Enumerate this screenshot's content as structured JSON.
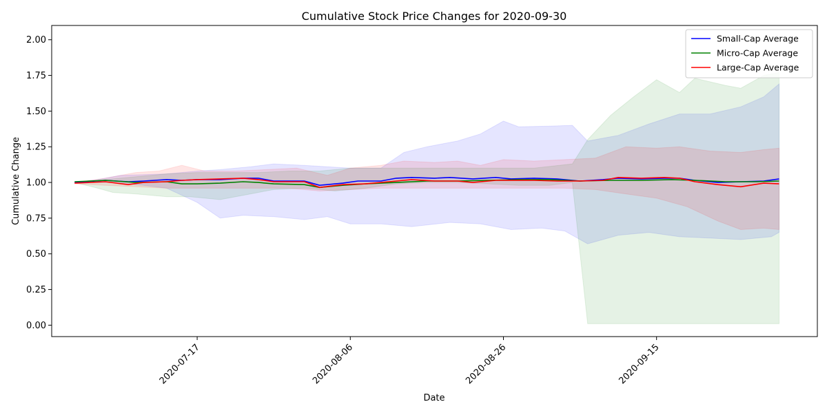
{
  "chart_data": {
    "type": "line",
    "title": "Cumulative Stock Price Changes for 2020-09-30",
    "xlabel": "Date",
    "ylabel": "Cumulative Change",
    "xlim": [
      "2020-06-28",
      "2020-10-06"
    ],
    "ylim": [
      -0.08,
      2.1
    ],
    "x_ticks": [
      "2020-07-17",
      "2020-08-06",
      "2020-08-26",
      "2020-09-15"
    ],
    "y_ticks": [
      "0.00",
      "0.25",
      "0.50",
      "0.75",
      "1.00",
      "1.25",
      "1.50",
      "1.75",
      "2.00"
    ],
    "grid": false,
    "legend_position": "upper right",
    "series": [
      {
        "name": "Small-Cap Average",
        "color": "#0000ff",
        "band_color": "#0000ff",
        "points": [
          [
            "2020-07-01",
            1.0
          ],
          [
            "2020-07-05",
            1.015
          ],
          [
            "2020-07-08",
            1.005
          ],
          [
            "2020-07-10",
            1.01
          ],
          [
            "2020-07-13",
            1.02
          ],
          [
            "2020-07-15",
            1.015
          ],
          [
            "2020-07-17",
            1.02
          ],
          [
            "2020-07-20",
            1.02
          ],
          [
            "2020-07-23",
            1.03
          ],
          [
            "2020-07-25",
            1.03
          ],
          [
            "2020-07-27",
            1.01
          ],
          [
            "2020-07-31",
            1.01
          ],
          [
            "2020-08-02",
            0.98
          ],
          [
            "2020-08-05",
            0.995
          ],
          [
            "2020-08-07",
            1.01
          ],
          [
            "2020-08-10",
            1.01
          ],
          [
            "2020-08-12",
            1.03
          ],
          [
            "2020-08-14",
            1.035
          ],
          [
            "2020-08-17",
            1.03
          ],
          [
            "2020-08-19",
            1.035
          ],
          [
            "2020-08-22",
            1.025
          ],
          [
            "2020-08-25",
            1.035
          ],
          [
            "2020-08-27",
            1.025
          ],
          [
            "2020-08-30",
            1.03
          ],
          [
            "2020-09-02",
            1.025
          ],
          [
            "2020-09-05",
            1.01
          ],
          [
            "2020-09-08",
            1.02
          ],
          [
            "2020-09-10",
            1.03
          ],
          [
            "2020-09-13",
            1.025
          ],
          [
            "2020-09-16",
            1.03
          ],
          [
            "2020-09-18",
            1.03
          ],
          [
            "2020-09-20",
            1.015
          ],
          [
            "2020-09-23",
            1.0
          ],
          [
            "2020-09-26",
            1.005
          ],
          [
            "2020-09-29",
            1.01
          ],
          [
            "2020-10-01",
            1.025
          ]
        ],
        "lower": [
          [
            "2020-07-01",
            1.0
          ],
          [
            "2020-07-06",
            1.0
          ],
          [
            "2020-07-10",
            0.98
          ],
          [
            "2020-07-13",
            0.96
          ],
          [
            "2020-07-17",
            0.86
          ],
          [
            "2020-07-20",
            0.75
          ],
          [
            "2020-07-23",
            0.77
          ],
          [
            "2020-07-27",
            0.76
          ],
          [
            "2020-07-31",
            0.74
          ],
          [
            "2020-08-03",
            0.76
          ],
          [
            "2020-08-06",
            0.71
          ],
          [
            "2020-08-10",
            0.71
          ],
          [
            "2020-08-14",
            0.69
          ],
          [
            "2020-08-19",
            0.72
          ],
          [
            "2020-08-23",
            0.71
          ],
          [
            "2020-08-27",
            0.67
          ],
          [
            "2020-08-31",
            0.68
          ],
          [
            "2020-09-03",
            0.66
          ],
          [
            "2020-09-06",
            0.57
          ],
          [
            "2020-09-10",
            0.63
          ],
          [
            "2020-09-14",
            0.65
          ],
          [
            "2020-09-18",
            0.62
          ],
          [
            "2020-09-22",
            0.61
          ],
          [
            "2020-09-26",
            0.6
          ],
          [
            "2020-09-30",
            0.62
          ],
          [
            "2020-10-01",
            0.65
          ]
        ],
        "upper": [
          [
            "2020-07-01",
            1.0
          ],
          [
            "2020-07-04",
            1.02
          ],
          [
            "2020-07-07",
            1.05
          ],
          [
            "2020-07-10",
            1.055
          ],
          [
            "2020-07-13",
            1.06
          ],
          [
            "2020-07-17",
            1.08
          ],
          [
            "2020-07-20",
            1.09
          ],
          [
            "2020-07-24",
            1.11
          ],
          [
            "2020-07-27",
            1.13
          ],
          [
            "2020-07-31",
            1.12
          ],
          [
            "2020-08-03",
            1.11
          ],
          [
            "2020-08-06",
            1.1
          ],
          [
            "2020-08-10",
            1.1
          ],
          [
            "2020-08-13",
            1.21
          ],
          [
            "2020-08-16",
            1.25
          ],
          [
            "2020-08-20",
            1.29
          ],
          [
            "2020-08-23",
            1.34
          ],
          [
            "2020-08-26",
            1.43
          ],
          [
            "2020-08-28",
            1.39
          ],
          [
            "2020-09-01",
            1.395
          ],
          [
            "2020-09-04",
            1.4
          ],
          [
            "2020-09-06",
            1.29
          ],
          [
            "2020-09-10",
            1.33
          ],
          [
            "2020-09-14",
            1.41
          ],
          [
            "2020-09-18",
            1.48
          ],
          [
            "2020-09-22",
            1.48
          ],
          [
            "2020-09-26",
            1.53
          ],
          [
            "2020-09-29",
            1.6
          ],
          [
            "2020-10-01",
            1.69
          ]
        ]
      },
      {
        "name": "Micro-Cap Average",
        "color": "#008000",
        "band_color": "#008000",
        "points": [
          [
            "2020-07-01",
            1.005
          ],
          [
            "2020-07-05",
            1.015
          ],
          [
            "2020-07-09",
            1.0
          ],
          [
            "2020-07-13",
            1.005
          ],
          [
            "2020-07-15",
            0.99
          ],
          [
            "2020-07-17",
            0.99
          ],
          [
            "2020-07-20",
            0.995
          ],
          [
            "2020-07-23",
            1.005
          ],
          [
            "2020-07-25",
            1.0
          ],
          [
            "2020-07-27",
            0.99
          ],
          [
            "2020-07-31",
            0.985
          ],
          [
            "2020-08-02",
            0.965
          ],
          [
            "2020-08-05",
            0.98
          ],
          [
            "2020-08-08",
            0.99
          ],
          [
            "2020-08-12",
            1.0
          ],
          [
            "2020-08-16",
            1.01
          ],
          [
            "2020-08-20",
            1.01
          ],
          [
            "2020-08-24",
            1.015
          ],
          [
            "2020-08-28",
            1.02
          ],
          [
            "2020-09-01",
            1.02
          ],
          [
            "2020-09-05",
            1.01
          ],
          [
            "2020-09-09",
            1.015
          ],
          [
            "2020-09-13",
            1.015
          ],
          [
            "2020-09-17",
            1.02
          ],
          [
            "2020-09-20",
            1.015
          ],
          [
            "2020-09-24",
            1.005
          ],
          [
            "2020-09-28",
            1.005
          ],
          [
            "2020-10-01",
            1.01
          ]
        ],
        "lower": [
          [
            "2020-07-01",
            1.0
          ],
          [
            "2020-07-04",
            0.96
          ],
          [
            "2020-07-06",
            0.93
          ],
          [
            "2020-07-09",
            0.92
          ],
          [
            "2020-07-13",
            0.9
          ],
          [
            "2020-07-16",
            0.9
          ],
          [
            "2020-07-20",
            0.88
          ],
          [
            "2020-07-23",
            0.91
          ],
          [
            "2020-07-27",
            0.95
          ],
          [
            "2020-07-31",
            0.96
          ],
          [
            "2020-08-04",
            0.94
          ],
          [
            "2020-08-08",
            0.96
          ],
          [
            "2020-08-12",
            0.99
          ],
          [
            "2020-08-16",
            1.0
          ],
          [
            "2020-08-20",
            1.0
          ],
          [
            "2020-08-24",
            0.99
          ],
          [
            "2020-08-28",
            0.98
          ],
          [
            "2020-09-01",
            0.98
          ],
          [
            "2020-09-04",
            1.0
          ],
          [
            "2020-09-06",
            0.01
          ],
          [
            "2020-09-30",
            0.01
          ],
          [
            "2020-10-01",
            0.01
          ]
        ],
        "upper": [
          [
            "2020-07-01",
            1.0
          ],
          [
            "2020-07-05",
            1.02
          ],
          [
            "2020-07-09",
            1.04
          ],
          [
            "2020-07-13",
            1.06
          ],
          [
            "2020-07-17",
            1.07
          ],
          [
            "2020-07-21",
            1.07
          ],
          [
            "2020-07-25",
            1.07
          ],
          [
            "2020-07-29",
            1.08
          ],
          [
            "2020-08-02",
            1.08
          ],
          [
            "2020-08-06",
            1.1
          ],
          [
            "2020-08-10",
            1.1
          ],
          [
            "2020-08-14",
            1.1
          ],
          [
            "2020-08-18",
            1.1
          ],
          [
            "2020-08-22",
            1.1
          ],
          [
            "2020-08-26",
            1.1
          ],
          [
            "2020-08-30",
            1.1
          ],
          [
            "2020-09-04",
            1.13
          ],
          [
            "2020-09-06",
            1.3
          ],
          [
            "2020-09-09",
            1.47
          ],
          [
            "2020-09-12",
            1.6
          ],
          [
            "2020-09-15",
            1.72
          ],
          [
            "2020-09-18",
            1.63
          ],
          [
            "2020-09-20",
            1.73
          ],
          [
            "2020-09-24",
            1.68
          ],
          [
            "2020-09-26",
            1.66
          ],
          [
            "2020-09-29",
            1.75
          ],
          [
            "2020-10-01",
            1.77
          ]
        ]
      },
      {
        "name": "Large-Cap Average",
        "color": "#ff0000",
        "band_color": "#ff0000",
        "points": [
          [
            "2020-07-01",
            0.995
          ],
          [
            "2020-07-05",
            1.005
          ],
          [
            "2020-07-08",
            0.985
          ],
          [
            "2020-07-10",
            1.0
          ],
          [
            "2020-07-13",
            1.005
          ],
          [
            "2020-07-15",
            1.015
          ],
          [
            "2020-07-17",
            1.02
          ],
          [
            "2020-07-20",
            1.025
          ],
          [
            "2020-07-23",
            1.03
          ],
          [
            "2020-07-25",
            1.02
          ],
          [
            "2020-07-27",
            1.005
          ],
          [
            "2020-07-31",
            1.005
          ],
          [
            "2020-08-02",
            0.965
          ],
          [
            "2020-08-05",
            0.985
          ],
          [
            "2020-08-08",
            0.99
          ],
          [
            "2020-08-12",
            1.01
          ],
          [
            "2020-08-14",
            1.02
          ],
          [
            "2020-08-17",
            1.01
          ],
          [
            "2020-08-20",
            1.01
          ],
          [
            "2020-08-22",
            1.0
          ],
          [
            "2020-08-25",
            1.015
          ],
          [
            "2020-08-27",
            1.015
          ],
          [
            "2020-08-30",
            1.015
          ],
          [
            "2020-09-02",
            1.01
          ],
          [
            "2020-09-05",
            1.01
          ],
          [
            "2020-09-08",
            1.015
          ],
          [
            "2020-09-10",
            1.035
          ],
          [
            "2020-09-13",
            1.03
          ],
          [
            "2020-09-16",
            1.035
          ],
          [
            "2020-09-18",
            1.03
          ],
          [
            "2020-09-20",
            1.005
          ],
          [
            "2020-09-23",
            0.985
          ],
          [
            "2020-09-26",
            0.97
          ],
          [
            "2020-09-29",
            0.995
          ],
          [
            "2020-10-01",
            0.99
          ]
        ],
        "lower": [
          [
            "2020-07-01",
            0.99
          ],
          [
            "2020-07-05",
            0.98
          ],
          [
            "2020-07-09",
            0.97
          ],
          [
            "2020-07-13",
            0.96
          ],
          [
            "2020-07-17",
            0.96
          ],
          [
            "2020-07-21",
            0.96
          ],
          [
            "2020-07-25",
            0.96
          ],
          [
            "2020-07-29",
            0.96
          ],
          [
            "2020-08-02",
            0.94
          ],
          [
            "2020-08-06",
            0.95
          ],
          [
            "2020-08-10",
            0.96
          ],
          [
            "2020-08-14",
            0.96
          ],
          [
            "2020-08-18",
            0.96
          ],
          [
            "2020-08-22",
            0.96
          ],
          [
            "2020-08-26",
            0.96
          ],
          [
            "2020-08-30",
            0.96
          ],
          [
            "2020-09-03",
            0.96
          ],
          [
            "2020-09-07",
            0.95
          ],
          [
            "2020-09-11",
            0.92
          ],
          [
            "2020-09-15",
            0.89
          ],
          [
            "2020-09-19",
            0.83
          ],
          [
            "2020-09-23",
            0.73
          ],
          [
            "2020-09-26",
            0.67
          ],
          [
            "2020-09-29",
            0.68
          ],
          [
            "2020-10-01",
            0.67
          ]
        ],
        "upper": [
          [
            "2020-07-01",
            1.0
          ],
          [
            "2020-07-05",
            1.03
          ],
          [
            "2020-07-09",
            1.07
          ],
          [
            "2020-07-12",
            1.08
          ],
          [
            "2020-07-15",
            1.12
          ],
          [
            "2020-07-18",
            1.08
          ],
          [
            "2020-07-22",
            1.08
          ],
          [
            "2020-07-26",
            1.09
          ],
          [
            "2020-07-30",
            1.1
          ],
          [
            "2020-08-03",
            1.05
          ],
          [
            "2020-08-06",
            1.1
          ],
          [
            "2020-08-10",
            1.12
          ],
          [
            "2020-08-13",
            1.15
          ],
          [
            "2020-08-17",
            1.14
          ],
          [
            "2020-08-20",
            1.15
          ],
          [
            "2020-08-23",
            1.12
          ],
          [
            "2020-08-26",
            1.16
          ],
          [
            "2020-08-30",
            1.15
          ],
          [
            "2020-09-03",
            1.16
          ],
          [
            "2020-09-07",
            1.17
          ],
          [
            "2020-09-11",
            1.25
          ],
          [
            "2020-09-15",
            1.24
          ],
          [
            "2020-09-18",
            1.25
          ],
          [
            "2020-09-22",
            1.22
          ],
          [
            "2020-09-26",
            1.21
          ],
          [
            "2020-09-29",
            1.23
          ],
          [
            "2020-10-01",
            1.24
          ]
        ]
      }
    ]
  }
}
